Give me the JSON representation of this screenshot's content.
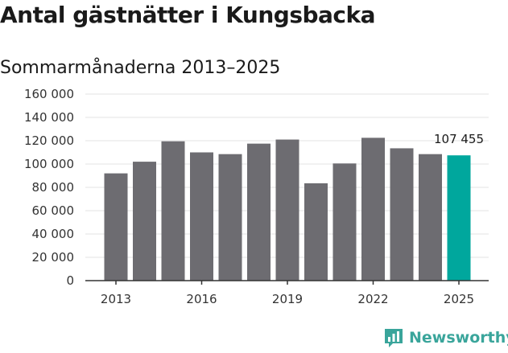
{
  "header": {
    "title": "Antal gästnätter i Kungsbacka",
    "subtitle": "Sommarmånaderna 2013–2025"
  },
  "brand": {
    "name": "Newsworthy",
    "color": "#3aa59b"
  },
  "colors": {
    "bar": "#6d6c71",
    "highlight": "#00a79d",
    "grid": "#e3e3e3",
    "axis": "#333333"
  },
  "chart_data": {
    "type": "bar",
    "title": "Antal gästnätter i Kungsbacka",
    "subtitle": "Sommarmånaderna 2013–2025",
    "xlabel": "",
    "ylabel": "",
    "categories": [
      "2013",
      "2014",
      "2015",
      "2016",
      "2017",
      "2018",
      "2019",
      "2020",
      "2021",
      "2022",
      "2023",
      "2024",
      "2025"
    ],
    "values": [
      92000,
      102000,
      119500,
      110000,
      108500,
      117500,
      121000,
      83500,
      100500,
      122500,
      113500,
      108500,
      107455
    ],
    "highlight_index": 12,
    "ylim": [
      0,
      160000
    ],
    "y_ticks": [
      0,
      20000,
      40000,
      60000,
      80000,
      100000,
      120000,
      140000,
      160000
    ],
    "y_tick_labels": [
      "0",
      "20 000",
      "40 000",
      "60 000",
      "80 000",
      "100 000",
      "120 000",
      "140 000",
      "160 000"
    ],
    "x_tick_labels": [
      "2013",
      "2016",
      "2019",
      "2022",
      "2025"
    ],
    "annotations": [
      {
        "category": "2025",
        "text": "107 455"
      }
    ],
    "grid": true,
    "legend": "none"
  }
}
